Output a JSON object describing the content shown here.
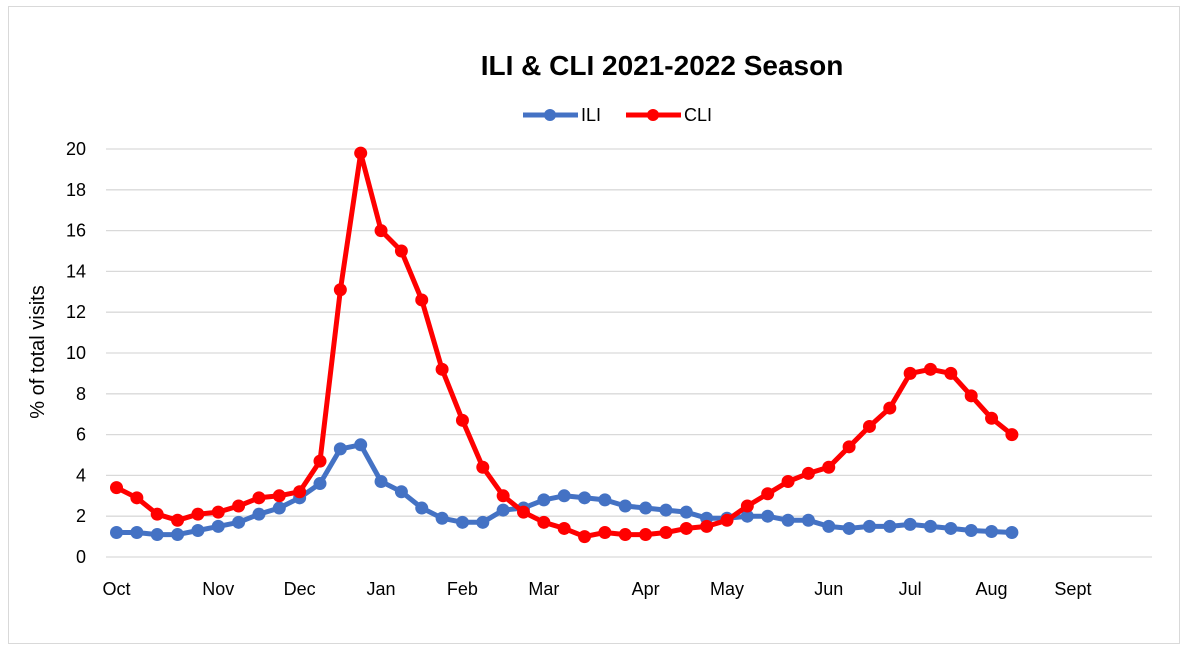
{
  "chart_data": {
    "type": "line",
    "title": "ILI & CLI 2021-2022 Season",
    "xlabel": "",
    "ylabel": "% of total visits",
    "ylim": [
      0,
      20
    ],
    "yticks": [
      0,
      2,
      4,
      6,
      8,
      10,
      12,
      14,
      16,
      18,
      20
    ],
    "month_labels": [
      "Oct",
      "Nov",
      "Dec",
      "Jan",
      "Feb",
      "Mar",
      "Apr",
      "May",
      "Jun",
      "Jul",
      "Aug",
      "Sept"
    ],
    "month_label_week": [
      0,
      5,
      9,
      13,
      17,
      21,
      26,
      30,
      35,
      39,
      43,
      47
    ],
    "grid": true,
    "legend_position": "top-center",
    "series": [
      {
        "name": "ILI",
        "color": "#4472C4",
        "values": [
          1.2,
          1.2,
          1.1,
          1.1,
          1.3,
          1.5,
          1.7,
          2.1,
          2.4,
          2.9,
          3.6,
          5.3,
          5.5,
          3.7,
          3.2,
          2.4,
          1.9,
          1.7,
          1.7,
          2.3,
          2.4,
          2.8,
          3.0,
          2.9,
          2.8,
          2.5,
          2.4,
          2.3,
          2.2,
          1.9,
          1.9,
          2.0,
          2.0,
          1.8,
          1.8,
          1.5,
          1.4,
          1.5,
          1.5,
          1.6,
          1.5,
          1.4,
          1.3,
          1.25,
          1.2
        ]
      },
      {
        "name": "CLI",
        "color": "#FF0000",
        "values": [
          3.4,
          2.9,
          2.1,
          1.8,
          2.1,
          2.2,
          2.5,
          2.9,
          3.0,
          3.2,
          4.7,
          13.1,
          19.8,
          16.0,
          15.0,
          12.6,
          9.2,
          6.7,
          4.4,
          3.0,
          2.2,
          1.7,
          1.4,
          1.0,
          1.2,
          1.1,
          1.1,
          1.2,
          1.4,
          1.5,
          1.8,
          2.5,
          3.1,
          3.7,
          4.1,
          4.4,
          5.4,
          6.4,
          7.3,
          9.0,
          9.2,
          9.0,
          7.9,
          6.8,
          6.0
        ]
      }
    ]
  }
}
